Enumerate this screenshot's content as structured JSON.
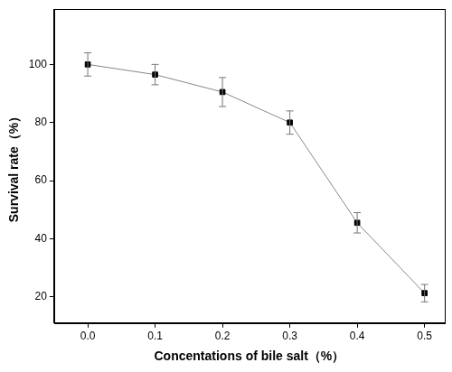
{
  "chart_data": {
    "type": "line",
    "x_label": "Concentations of bile salt（%）",
    "y_label": "Survival rate（%）",
    "x": [
      0.0,
      0.1,
      0.2,
      0.3,
      0.4,
      0.5
    ],
    "values": [
      100,
      96.5,
      90.5,
      80,
      45.5,
      21.3
    ],
    "errors": [
      4,
      3.5,
      5,
      4,
      3.5,
      3
    ],
    "color": "#000000",
    "marker": "square",
    "xlim": [
      -0.05,
      0.53
    ],
    "xticks": [
      {
        "value": 0.0,
        "label": "0.0"
      },
      {
        "value": 0.1,
        "label": "0.1"
      },
      {
        "value": 0.2,
        "label": "0.2"
      },
      {
        "value": 0.3,
        "label": "0.3"
      },
      {
        "value": 0.4,
        "label": "0.4"
      },
      {
        "value": 0.5,
        "label": "0.5"
      }
    ],
    "ylim": [
      11,
      119
    ],
    "yticks": [
      20,
      40,
      60,
      80,
      100
    ],
    "grid": false
  }
}
